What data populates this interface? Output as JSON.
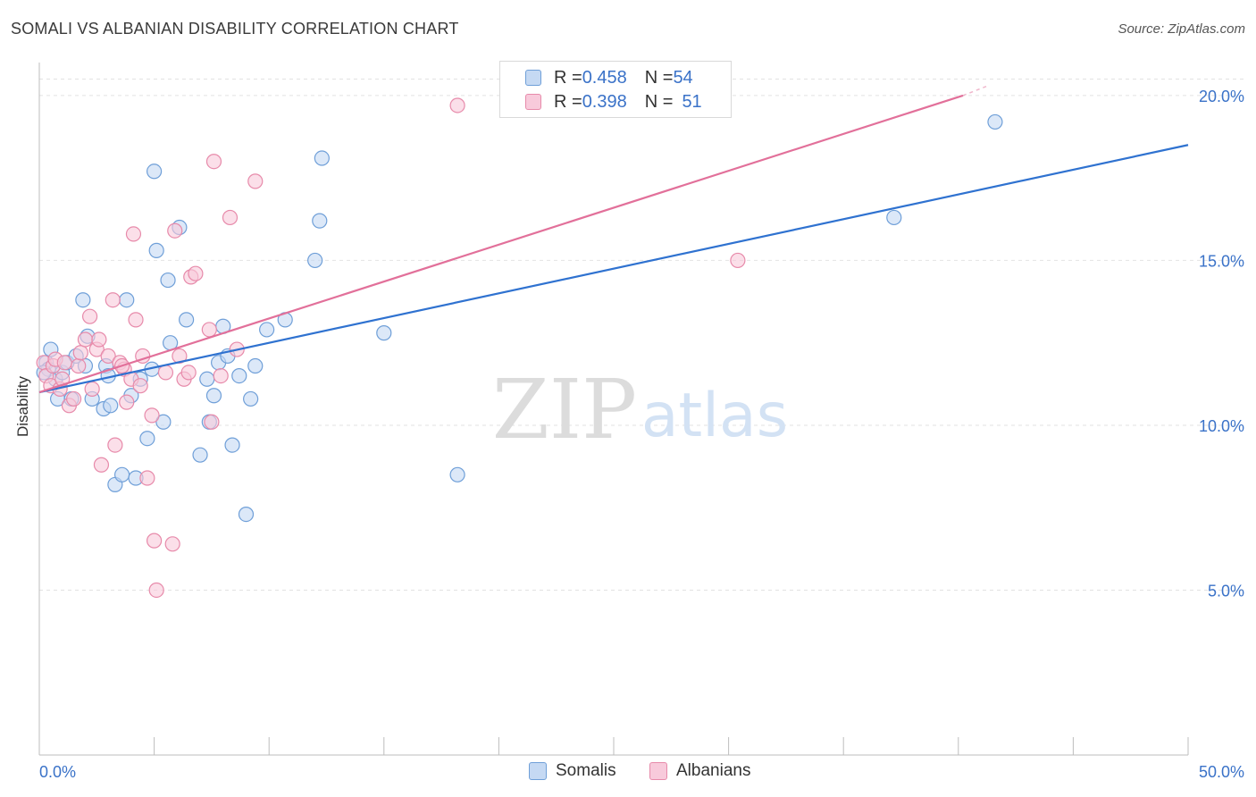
{
  "title": "SOMALI VS ALBANIAN DISABILITY CORRELATION CHART",
  "source": "Source: ZipAtlas.com",
  "watermark": {
    "zip": "ZIP",
    "atlas": "atlas"
  },
  "colors": {
    "somali_fill": "#c5d9f3",
    "somali_stroke": "#6f9fd8",
    "somali_line": "#2f72d0",
    "albanian_fill": "#f8cadb",
    "albanian_stroke": "#e78aaa",
    "albanian_line": "#e2709a",
    "tick_label": "#3a72c8",
    "grid": "#e2e2e2"
  },
  "legend": {
    "somali": {
      "r_label": "R = ",
      "r_value": "0.458",
      "n_label": "N = ",
      "n_value": "54"
    },
    "albanian": {
      "r_label": "R = ",
      "r_value": "0.398",
      "n_label": "N = ",
      "n_value": "51"
    }
  },
  "bottom_legend": {
    "somali": "Somalis",
    "albanian": "Albanians"
  },
  "chart_data": {
    "type": "scatter",
    "title": "SOMALI VS ALBANIAN DISABILITY CORRELATION CHART",
    "xlabel": "",
    "ylabel": "Disability",
    "xlim": [
      0,
      50
    ],
    "ylim": [
      0,
      21
    ],
    "x_tick_labels": [
      {
        "value": 0,
        "label": "0.0%"
      },
      {
        "value": 50,
        "label": "50.0%"
      }
    ],
    "y_tick_labels": [
      {
        "value": 5,
        "label": "5.0%"
      },
      {
        "value": 10,
        "label": "10.0%"
      },
      {
        "value": 15,
        "label": "15.0%"
      },
      {
        "value": 20,
        "label": "20.0%"
      }
    ],
    "x_minor_ticks": [
      0,
      5,
      10,
      15,
      20,
      25,
      30,
      35,
      40,
      45,
      50
    ],
    "series": [
      {
        "name": "Somalis",
        "trend": {
          "x": [
            0,
            50
          ],
          "y": [
            11.0,
            18.5
          ]
        },
        "points": [
          {
            "x": 0.3,
            "y": 11.9
          },
          {
            "x": 0.4,
            "y": 11.7
          },
          {
            "x": 0.5,
            "y": 12.3
          },
          {
            "x": 0.7,
            "y": 11.4
          },
          {
            "x": 0.8,
            "y": 10.8
          },
          {
            "x": 1.0,
            "y": 11.6
          },
          {
            "x": 1.2,
            "y": 11.9
          },
          {
            "x": 1.4,
            "y": 10.8
          },
          {
            "x": 1.6,
            "y": 12.1
          },
          {
            "x": 1.9,
            "y": 13.8
          },
          {
            "x": 2.0,
            "y": 11.8
          },
          {
            "x": 2.1,
            "y": 12.7
          },
          {
            "x": 2.3,
            "y": 10.8
          },
          {
            "x": 2.8,
            "y": 10.5
          },
          {
            "x": 2.9,
            "y": 11.8
          },
          {
            "x": 3.0,
            "y": 11.5
          },
          {
            "x": 3.1,
            "y": 10.6
          },
          {
            "x": 3.3,
            "y": 8.2
          },
          {
            "x": 3.6,
            "y": 8.5
          },
          {
            "x": 3.8,
            "y": 13.8
          },
          {
            "x": 4.0,
            "y": 10.9
          },
          {
            "x": 4.2,
            "y": 8.4
          },
          {
            "x": 4.4,
            "y": 11.4
          },
          {
            "x": 4.7,
            "y": 9.6
          },
          {
            "x": 4.9,
            "y": 11.7
          },
          {
            "x": 5.0,
            "y": 17.7
          },
          {
            "x": 5.1,
            "y": 15.3
          },
          {
            "x": 5.4,
            "y": 10.1
          },
          {
            "x": 5.6,
            "y": 14.4
          },
          {
            "x": 5.7,
            "y": 12.5
          },
          {
            "x": 6.1,
            "y": 16.0
          },
          {
            "x": 6.4,
            "y": 13.2
          },
          {
            "x": 7.0,
            "y": 9.1
          },
          {
            "x": 7.3,
            "y": 11.4
          },
          {
            "x": 7.4,
            "y": 10.1
          },
          {
            "x": 7.6,
            "y": 10.9
          },
          {
            "x": 7.8,
            "y": 11.9
          },
          {
            "x": 8.0,
            "y": 13.0
          },
          {
            "x": 8.2,
            "y": 12.1
          },
          {
            "x": 8.4,
            "y": 9.4
          },
          {
            "x": 8.7,
            "y": 11.5
          },
          {
            "x": 9.0,
            "y": 7.3
          },
          {
            "x": 9.2,
            "y": 10.8
          },
          {
            "x": 9.4,
            "y": 11.8
          },
          {
            "x": 9.9,
            "y": 12.9
          },
          {
            "x": 10.7,
            "y": 13.2
          },
          {
            "x": 12.0,
            "y": 15.0
          },
          {
            "x": 12.2,
            "y": 16.2
          },
          {
            "x": 12.3,
            "y": 18.1
          },
          {
            "x": 15.0,
            "y": 12.8
          },
          {
            "x": 18.2,
            "y": 8.5
          },
          {
            "x": 37.2,
            "y": 16.3
          },
          {
            "x": 41.6,
            "y": 19.2
          },
          {
            "x": 0.2,
            "y": 11.6
          }
        ]
      },
      {
        "name": "Albanians",
        "trend": {
          "x": [
            0,
            40.2
          ],
          "y": [
            11.0,
            20.0
          ],
          "dashed_to": {
            "x": 41.3,
            "y": 20.3
          }
        },
        "points": [
          {
            "x": 0.2,
            "y": 11.9
          },
          {
            "x": 0.3,
            "y": 11.5
          },
          {
            "x": 0.5,
            "y": 11.2
          },
          {
            "x": 0.6,
            "y": 11.8
          },
          {
            "x": 0.7,
            "y": 12.0
          },
          {
            "x": 0.9,
            "y": 11.1
          },
          {
            "x": 1.1,
            "y": 11.9
          },
          {
            "x": 1.3,
            "y": 10.6
          },
          {
            "x": 1.5,
            "y": 10.8
          },
          {
            "x": 1.7,
            "y": 11.8
          },
          {
            "x": 1.8,
            "y": 12.2
          },
          {
            "x": 2.0,
            "y": 12.6
          },
          {
            "x": 2.2,
            "y": 13.3
          },
          {
            "x": 2.3,
            "y": 11.1
          },
          {
            "x": 2.5,
            "y": 12.3
          },
          {
            "x": 2.6,
            "y": 12.6
          },
          {
            "x": 2.7,
            "y": 8.8
          },
          {
            "x": 3.0,
            "y": 12.1
          },
          {
            "x": 3.2,
            "y": 13.8
          },
          {
            "x": 3.3,
            "y": 9.4
          },
          {
            "x": 3.5,
            "y": 11.9
          },
          {
            "x": 3.7,
            "y": 11.7
          },
          {
            "x": 3.8,
            "y": 10.7
          },
          {
            "x": 4.0,
            "y": 11.4
          },
          {
            "x": 4.1,
            "y": 15.8
          },
          {
            "x": 4.2,
            "y": 13.2
          },
          {
            "x": 4.4,
            "y": 11.2
          },
          {
            "x": 4.5,
            "y": 12.1
          },
          {
            "x": 4.7,
            "y": 8.4
          },
          {
            "x": 4.9,
            "y": 10.3
          },
          {
            "x": 5.0,
            "y": 6.5
          },
          {
            "x": 5.1,
            "y": 5.0
          },
          {
            "x": 5.5,
            "y": 11.6
          },
          {
            "x": 5.8,
            "y": 6.4
          },
          {
            "x": 5.9,
            "y": 15.9
          },
          {
            "x": 6.1,
            "y": 12.1
          },
          {
            "x": 6.3,
            "y": 11.4
          },
          {
            "x": 6.5,
            "y": 11.6
          },
          {
            "x": 6.6,
            "y": 14.5
          },
          {
            "x": 6.8,
            "y": 14.6
          },
          {
            "x": 7.4,
            "y": 12.9
          },
          {
            "x": 7.5,
            "y": 10.1
          },
          {
            "x": 7.6,
            "y": 18.0
          },
          {
            "x": 7.9,
            "y": 11.5
          },
          {
            "x": 8.3,
            "y": 16.3
          },
          {
            "x": 8.6,
            "y": 12.3
          },
          {
            "x": 9.4,
            "y": 17.4
          },
          {
            "x": 18.2,
            "y": 19.7
          },
          {
            "x": 30.4,
            "y": 15.0
          },
          {
            "x": 1.0,
            "y": 11.4
          },
          {
            "x": 3.6,
            "y": 11.8
          }
        ]
      }
    ]
  }
}
